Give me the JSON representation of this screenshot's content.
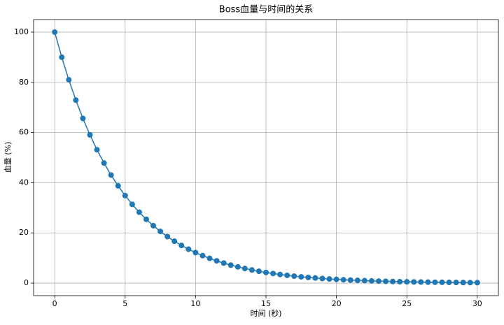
{
  "chart_data": {
    "type": "line",
    "title": "Boss血量与时间的关系",
    "x_label": "时间 (秒)",
    "y_label": "血量 (%)",
    "x": [
      0,
      0.5,
      1,
      1.5,
      2,
      2.5,
      3,
      3.5,
      4,
      4.5,
      5,
      5.5,
      6,
      6.5,
      7,
      7.5,
      8,
      8.5,
      9,
      9.5,
      10,
      10.5,
      11,
      11.5,
      12,
      12.5,
      13,
      13.5,
      14,
      14.5,
      15,
      15.5,
      16,
      16.5,
      17,
      17.5,
      18,
      18.5,
      19,
      19.5,
      20,
      20.5,
      21,
      21.5,
      22,
      22.5,
      23,
      23.5,
      24,
      24.5,
      25,
      25.5,
      26,
      26.5,
      27,
      27.5,
      28,
      28.5,
      29,
      29.5,
      30
    ],
    "series": [
      {
        "name": "血量",
        "color": "#1f77b4",
        "values": [
          100,
          90,
          81,
          72.9,
          65.61,
          59.05,
          53.14,
          47.83,
          43.05,
          38.74,
          34.87,
          31.38,
          28.24,
          25.42,
          22.88,
          20.59,
          18.53,
          16.68,
          15.01,
          13.51,
          12.16,
          10.94,
          9.85,
          8.86,
          7.98,
          7.18,
          6.46,
          5.81,
          5.23,
          4.71,
          4.24,
          3.82,
          3.43,
          3.09,
          2.78,
          2.5,
          2.25,
          2.03,
          1.82,
          1.64,
          1.48,
          1.33,
          1.2,
          1.08,
          0.97,
          0.87,
          0.79,
          0.71,
          0.64,
          0.57,
          0.52,
          0.46,
          0.42,
          0.38,
          0.34,
          0.31,
          0.28,
          0.25,
          0.22,
          0.2,
          0.18
        ]
      }
    ],
    "xlim": [
      -1.5,
      31.5
    ],
    "ylim": [
      -5,
      105
    ],
    "xticks": [
      0,
      5,
      10,
      15,
      20,
      25,
      30
    ],
    "yticks": [
      0,
      20,
      40,
      60,
      80,
      100
    ],
    "grid": true
  }
}
